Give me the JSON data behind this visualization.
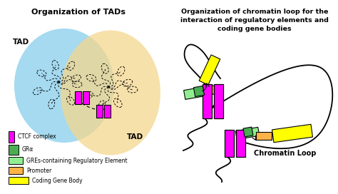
{
  "title_left": "Organization of TADs",
  "title_right": "Organization of chromatin loop for the\ninteraction of regulatory elements and\ncoding gene bodies",
  "tad_label1": "TAD",
  "tad_label2": "TAD",
  "chromatin_loop_label": "Chromatin Loop",
  "bg_color": "#FFFFFF",
  "tad1_color": "#87CEEB",
  "tad2_color": "#F5D78E",
  "ctcf_color": "#FF00FF",
  "gra_color": "#4AAD52",
  "gre_color": "#90EE90",
  "promoter_color": "#FFB347",
  "coding_color": "#FFFF00",
  "line_color": "#000000"
}
